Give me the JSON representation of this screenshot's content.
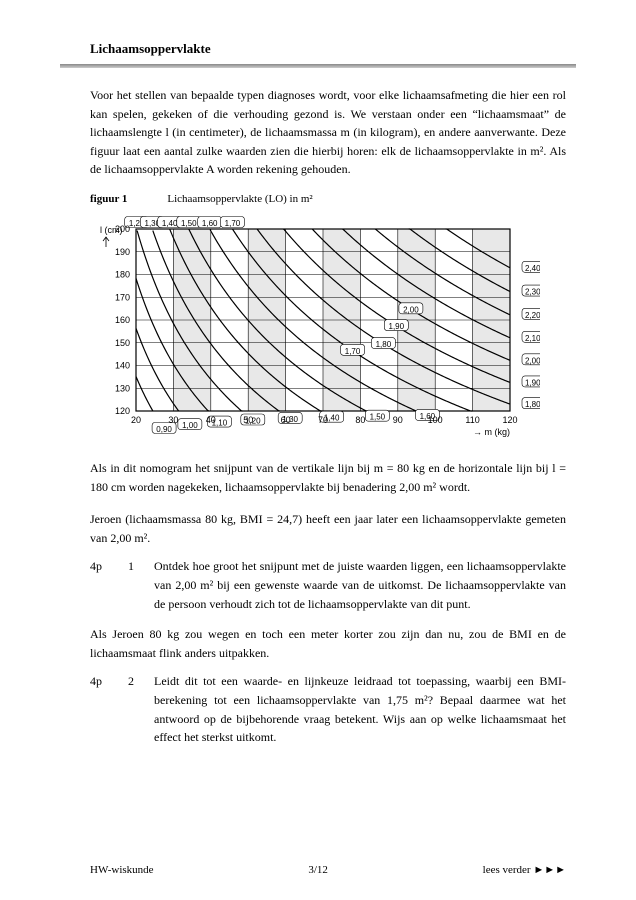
{
  "header": {
    "title": "Lichaamsoppervlakte"
  },
  "paragraphs": {
    "intro": "Voor het stellen van bepaalde typen diagnoses wordt, voor elke lichaamsafmeting die hier een rol kan spelen, gekeken of die verhouding gezond is. We verstaan onder een “lichaamsmaat” de lichaamslengte l (in centimeter), de lichaamsmassa m (in kilogram), en andere aanverwante. Deze figuur laat een aantal zulke waarden zien die hierbij horen: elk de lichaamsoppervlakte in m². Als de lichaams­oppervlakte A worden rekening gehouden.",
    "after_chart": "Als in dit nomogram het snijpunt van de vertikale lijn bij m = 80 kg en de horizontale lijn bij l = 180 cm worden nagekeken, lichaamsoppervlakte bij benadering 2,00 m² wordt.",
    "jeroen_intro": "Jeroen (lichaamsmassa 80 kg, BMI = 24,7) heeft een jaar later een lichaams­oppervlakte gemeten van 2,00 m².",
    "isa_intro": "Als Jeroen 80 kg zou wegen en toch een meter korter zou zijn dan nu, zou de BMI en de lichaamsmaat flink anders uitpakken."
  },
  "figure": {
    "label": "figuur 1",
    "caption": "Lichaamsoppervlakte (LO) in m²",
    "y_label": "l (cm)",
    "x_label": "m (kg)",
    "y_ticks": [
      200,
      190,
      180,
      170,
      160,
      150,
      140,
      130,
      120
    ],
    "x_ticks": [
      20,
      30,
      40,
      50,
      60,
      70,
      80,
      90,
      100,
      110,
      120
    ],
    "curve_labels": [
      "0,80",
      "0,90",
      "1,00",
      "1,10",
      "1,20",
      "1,30",
      "1,40",
      "1,50",
      "1,60",
      "1,70",
      "1,80",
      "1,90",
      "2,00",
      "2,10",
      "2,20",
      "2,30",
      "2,40"
    ],
    "colors": {
      "grid": "#000000",
      "bg_light": "#e8e8e8",
      "bg_white": "#ffffff",
      "curve": "#000000",
      "label_box_fill": "#ffffff"
    }
  },
  "questions": {
    "q1": {
      "points": "4p",
      "label": "1",
      "text": "Ontdek hoe groot het snijpunt met de juiste waarden liggen, een lichaams­oppervlakte van 2,00 m² bij een gewenste waarde van de uitkomst. De lichaams­oppervlakte van de persoon verhoudt zich tot de lichaamsoppervlakte van dit punt."
    },
    "q2": {
      "points": "4p",
      "label": "2",
      "text": "Leidt dit tot een waarde- en lijnkeuze leidraad tot toepassing, waarbij een BMI-berekening tot een lichaamsoppervlakte van 1,75 m²? Bepaal daarmee wat het antwoord op de bijbehorende vraag betekent. Wijs aan op welke lichaams­maat het effect het sterkst uitkomt."
    }
  },
  "footer": {
    "left": "HW-wiskunde",
    "center": "3/12",
    "right": "lees verder ►►►"
  }
}
